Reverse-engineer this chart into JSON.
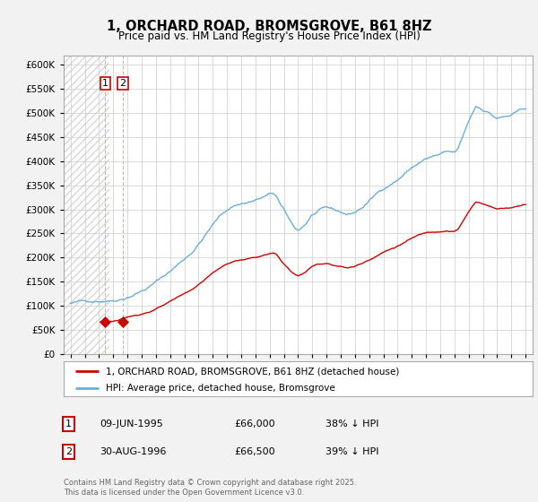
{
  "title": "1, ORCHARD ROAD, BROMSGROVE, B61 8HZ",
  "subtitle": "Price paid vs. HM Land Registry's House Price Index (HPI)",
  "legend_line1": "1, ORCHARD ROAD, BROMSGROVE, B61 8HZ (detached house)",
  "legend_line2": "HPI: Average price, detached house, Bromsgrove",
  "footer": "Contains HM Land Registry data © Crown copyright and database right 2025.\nThis data is licensed under the Open Government Licence v3.0.",
  "table": [
    {
      "num": "1",
      "date": "09-JUN-1995",
      "price": "£66,000",
      "hpi": "38% ↓ HPI"
    },
    {
      "num": "2",
      "date": "30-AUG-1996",
      "price": "£66,500",
      "hpi": "39% ↓ HPI"
    }
  ],
  "sale_dates": [
    1995.44,
    1996.66
  ],
  "sale_prices": [
    66000,
    66500
  ],
  "hpi_color": "#6baed6",
  "price_color": "#cc0000",
  "sale_marker_color": "#cc0000",
  "background_color": "#f2f2f2",
  "plot_bg_color": "#ffffff",
  "grid_color": "#cccccc",
  "ylim": [
    0,
    620000
  ],
  "yticks": [
    0,
    50000,
    100000,
    150000,
    200000,
    250000,
    300000,
    350000,
    400000,
    450000,
    500000,
    550000,
    600000
  ],
  "xlim_start": 1992.5,
  "xlim_end": 2025.5
}
